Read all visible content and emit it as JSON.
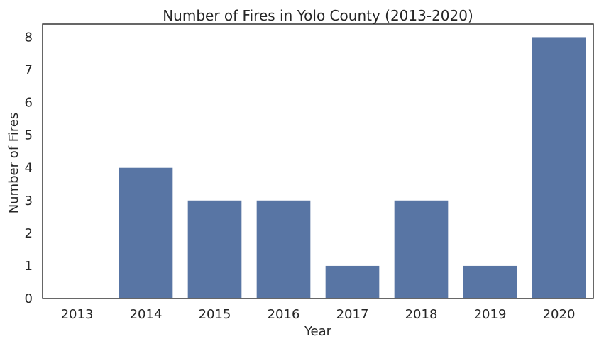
{
  "colors": {
    "bar": "#5875a4",
    "axes": "#262626",
    "background": "#ffffff"
  },
  "chart_data": {
    "type": "bar",
    "title": "Number of Fires in Yolo County (2013-2020)",
    "xlabel": "Year",
    "ylabel": "Number of Fires",
    "categories": [
      "2013",
      "2014",
      "2015",
      "2016",
      "2017",
      "2018",
      "2019",
      "2020"
    ],
    "values": [
      0,
      4,
      3,
      3,
      1,
      3,
      1,
      8
    ],
    "ylim": [
      0,
      8.4
    ],
    "yticks": [
      "0",
      "1",
      "2",
      "3",
      "4",
      "5",
      "6",
      "7",
      "8"
    ],
    "grid": false
  }
}
